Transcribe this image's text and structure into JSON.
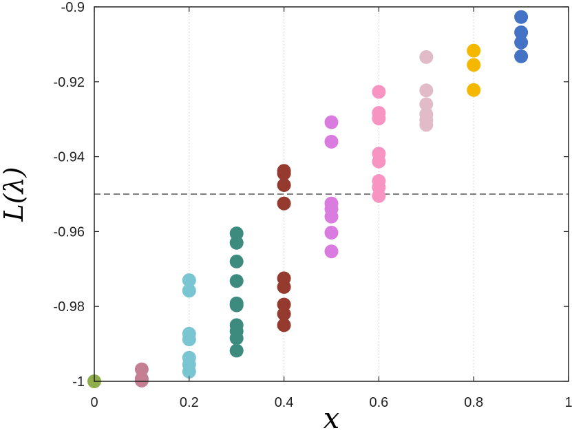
{
  "chart_data": {
    "type": "scatter",
    "xlabel": "x",
    "ylabel": "L(λ)",
    "xlim": [
      0,
      1
    ],
    "ylim": [
      -1,
      -0.9
    ],
    "xticks": [
      0,
      0.2,
      0.4,
      0.6,
      0.8,
      1
    ],
    "xtick_labels": [
      "0",
      "0.2",
      "0.4",
      "0.6",
      "0.8",
      "1"
    ],
    "yticks": [
      -1,
      -0.98,
      -0.96,
      -0.94,
      -0.92,
      -0.9
    ],
    "ytick_labels": [
      "-1",
      "-0.98",
      "-0.96",
      "-0.94",
      "-0.92",
      "-0.9"
    ],
    "grid": "vertical dotted at x ticks",
    "reference_line": {
      "y": -0.95,
      "style": "dashed",
      "color": "#333333"
    },
    "groups": [
      {
        "x": 0.0,
        "color": "#8fae4b",
        "y": [
          -1.0
        ]
      },
      {
        "x": 0.1,
        "color": "#c57f93",
        "y": [
          -0.9968,
          -0.9993,
          -0.9998
        ]
      },
      {
        "x": 0.2,
        "color": "#79c5d2",
        "y": [
          -0.973,
          -0.9758,
          -0.9873,
          -0.9888,
          -0.9937,
          -0.9955,
          -0.9974
        ]
      },
      {
        "x": 0.3,
        "color": "#3d8a7f",
        "y": [
          -0.9605,
          -0.963,
          -0.968,
          -0.9732,
          -0.9792,
          -0.9797,
          -0.985,
          -0.9866,
          -0.9885,
          -0.9918
        ]
      },
      {
        "x": 0.4,
        "color": "#953a2e",
        "y": [
          -0.9438,
          -0.9445,
          -0.9476,
          -0.9525,
          -0.9725,
          -0.9748,
          -0.9795,
          -0.982,
          -0.985
        ]
      },
      {
        "x": 0.5,
        "color": "#da7be0",
        "y": [
          -0.9308,
          -0.936,
          -0.9525,
          -0.954,
          -0.956,
          -0.9603,
          -0.9653
        ]
      },
      {
        "x": 0.6,
        "color": "#f794c1",
        "y": [
          -0.9227,
          -0.9283,
          -0.9298,
          -0.9392,
          -0.9413,
          -0.9465,
          -0.9482,
          -0.9505
        ]
      },
      {
        "x": 0.7,
        "color": "#e1bcc8",
        "y": [
          -0.9134,
          -0.9223,
          -0.926,
          -0.9287,
          -0.9302,
          -0.9315
        ]
      },
      {
        "x": 0.8,
        "color": "#f5b800",
        "y": [
          -0.9117,
          -0.9155,
          -0.9222
        ]
      },
      {
        "x": 0.9,
        "color": "#4472c4",
        "y": [
          -0.9027,
          -0.9068,
          -0.9095,
          -0.9132
        ]
      }
    ]
  }
}
